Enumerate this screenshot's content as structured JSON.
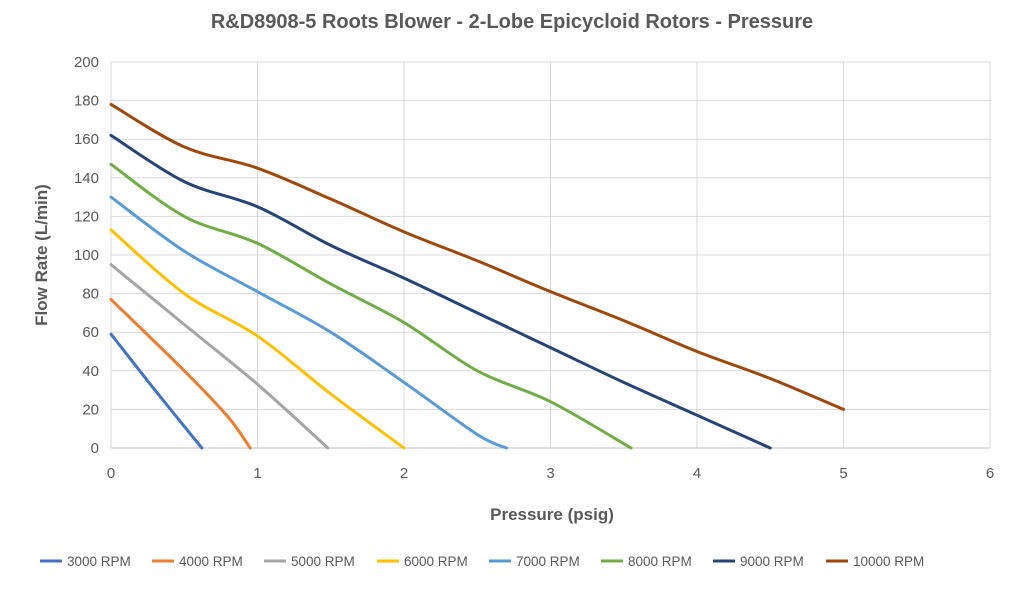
{
  "chart_data": {
    "type": "line",
    "title": "R&D8908-5 Roots Blower - 2-Lobe Epicycloid Rotors - Pressure",
    "xlabel": "Pressure (psig)",
    "ylabel": "Flow Rate (L/min)",
    "xlim": [
      0,
      6
    ],
    "ylim": [
      0,
      200
    ],
    "xticks": [
      "0",
      "1",
      "2",
      "3",
      "4",
      "5",
      "6"
    ],
    "yticks": [
      "0",
      "20",
      "40",
      "60",
      "80",
      "100",
      "120",
      "140",
      "160",
      "180",
      "200"
    ],
    "grid": true,
    "legend_position": "bottom",
    "series": [
      {
        "name": "3000 RPM",
        "color": "#4472C4",
        "points": [
          [
            0,
            59
          ],
          [
            0.3,
            30
          ],
          [
            0.62,
            0
          ]
        ]
      },
      {
        "name": "4000 RPM",
        "color": "#ED7D31",
        "points": [
          [
            0,
            77
          ],
          [
            0.5,
            40
          ],
          [
            0.8,
            16
          ],
          [
            0.95,
            0
          ]
        ]
      },
      {
        "name": "5000 RPM",
        "color": "#A5A5A5",
        "points": [
          [
            0,
            95
          ],
          [
            0.5,
            64
          ],
          [
            1,
            33
          ],
          [
            1.48,
            0
          ]
        ]
      },
      {
        "name": "6000 RPM",
        "color": "#FFC000",
        "points": [
          [
            0,
            113
          ],
          [
            0.5,
            80
          ],
          [
            1,
            58
          ],
          [
            1.5,
            28
          ],
          [
            2,
            0
          ]
        ]
      },
      {
        "name": "7000 RPM",
        "color": "#5B9BD5",
        "points": [
          [
            0,
            130
          ],
          [
            0.5,
            102
          ],
          [
            1,
            81
          ],
          [
            1.5,
            60
          ],
          [
            2,
            34
          ],
          [
            2.5,
            7
          ],
          [
            2.7,
            0
          ]
        ]
      },
      {
        "name": "8000 RPM",
        "color": "#70AD47",
        "points": [
          [
            0,
            147
          ],
          [
            0.5,
            120
          ],
          [
            1,
            106
          ],
          [
            1.5,
            85
          ],
          [
            2,
            65
          ],
          [
            2.5,
            40
          ],
          [
            3,
            24
          ],
          [
            3.55,
            0
          ]
        ]
      },
      {
        "name": "9000 RPM",
        "color": "#264478",
        "points": [
          [
            0,
            162
          ],
          [
            0.5,
            138
          ],
          [
            1,
            125
          ],
          [
            1.5,
            105
          ],
          [
            2,
            88
          ],
          [
            2.5,
            70
          ],
          [
            3,
            52
          ],
          [
            3.5,
            34
          ],
          [
            4,
            17
          ],
          [
            4.5,
            0
          ]
        ]
      },
      {
        "name": "10000 RPM",
        "color": "#9E480E",
        "points": [
          [
            0,
            178
          ],
          [
            0.5,
            156
          ],
          [
            1,
            145
          ],
          [
            1.5,
            129
          ],
          [
            2,
            112
          ],
          [
            2.5,
            97
          ],
          [
            3,
            81
          ],
          [
            3.5,
            66
          ],
          [
            4,
            50
          ],
          [
            4.5,
            36
          ],
          [
            5,
            20
          ]
        ]
      }
    ]
  }
}
